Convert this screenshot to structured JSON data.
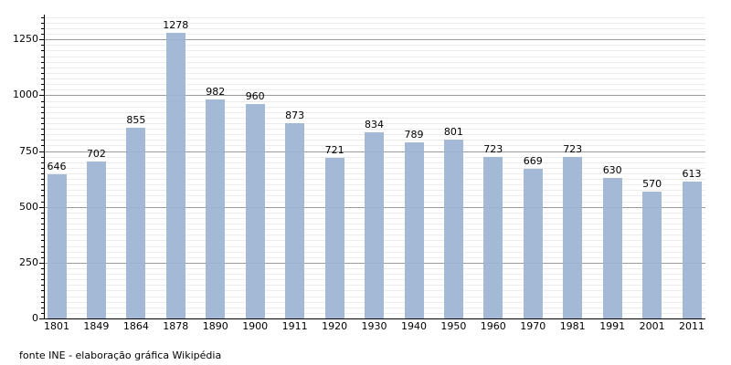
{
  "chart_data": {
    "type": "bar",
    "title": "",
    "xlabel": "",
    "ylabel": "",
    "categories": [
      "1801",
      "1849",
      "1864",
      "1878",
      "1890",
      "1900",
      "1911",
      "1920",
      "1930",
      "1940",
      "1950",
      "1960",
      "1970",
      "1981",
      "1991",
      "2001",
      "2011"
    ],
    "values": [
      646,
      702,
      855,
      1278,
      982,
      960,
      873,
      721,
      834,
      789,
      801,
      723,
      669,
      723,
      630,
      570,
      613
    ],
    "ylim": [
      0,
      1350
    ],
    "yticks": [
      0,
      250,
      500,
      750,
      1000,
      1250
    ],
    "minor_step": 25,
    "grid": true,
    "legend": "none",
    "value_labels": true,
    "colors": {
      "bar_fill": "#9db4d3",
      "gridline_minor": "#ececec",
      "gridline_major": "#9b9b9b",
      "axis": "#000000",
      "text": "#000000"
    },
    "caption": "fonte INE - elaboração gráfica Wikipédia"
  }
}
